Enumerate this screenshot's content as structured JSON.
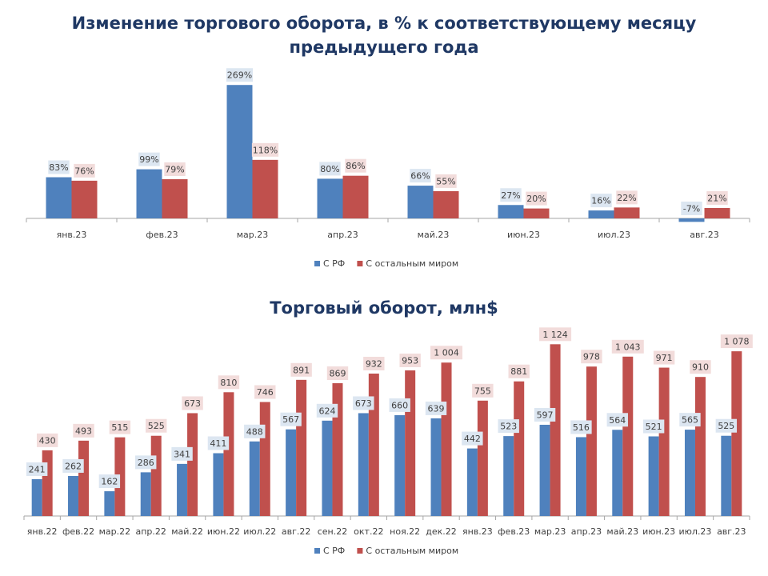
{
  "chart_data": [
    {
      "type": "bar",
      "title": "Изменение торгового оборота, в % к соответствующему месяцу предыдущего года",
      "title_lines": [
        "Изменение торгового оборота, в % к соответствующему месяцу",
        "предыдущего года"
      ],
      "unit_suffix": "%",
      "categories": [
        "янв.23",
        "фев.23",
        "мар.23",
        "апр.23",
        "май.23",
        "июн.23",
        "июл.23",
        "авг.23"
      ],
      "series": [
        {
          "name": "С РФ",
          "color": "#4f81bd",
          "label_bg": "#dce6f1",
          "values": [
            83,
            99,
            269,
            80,
            66,
            27,
            16,
            -7
          ]
        },
        {
          "name": "С остальным миром",
          "color": "#c0504d",
          "label_bg": "#f2dcdb",
          "values": [
            76,
            79,
            118,
            86,
            55,
            20,
            22,
            21
          ]
        }
      ],
      "legend_position": "bottom",
      "grid": false
    },
    {
      "type": "bar",
      "title": "Торговый оборот, млн$",
      "unit_suffix": "",
      "categories": [
        "янв.22",
        "фев.22",
        "мар.22",
        "апр.22",
        "май.22",
        "июн.22",
        "июл.22",
        "авг.22",
        "сен.22",
        "окт.22",
        "ноя.22",
        "дек.22",
        "янв.23",
        "фев.23",
        "мар.23",
        "апр.23",
        "май.23",
        "июн.23",
        "июл.23",
        "авг.23"
      ],
      "series": [
        {
          "name": "С РФ",
          "color": "#4f81bd",
          "label_bg": "#dce6f1",
          "values": [
            241,
            262,
            162,
            286,
            341,
            411,
            488,
            567,
            624,
            673,
            660,
            639,
            442,
            523,
            597,
            516,
            564,
            521,
            565,
            525
          ]
        },
        {
          "name": "С остальным миром",
          "color": "#c0504d",
          "label_bg": "#f2dcdb",
          "values": [
            430,
            493,
            515,
            525,
            673,
            810,
            746,
            891,
            869,
            932,
            953,
            1004,
            755,
            881,
            1124,
            978,
            1043,
            971,
            910,
            1078
          ]
        }
      ],
      "legend_position": "bottom",
      "grid": false
    }
  ]
}
